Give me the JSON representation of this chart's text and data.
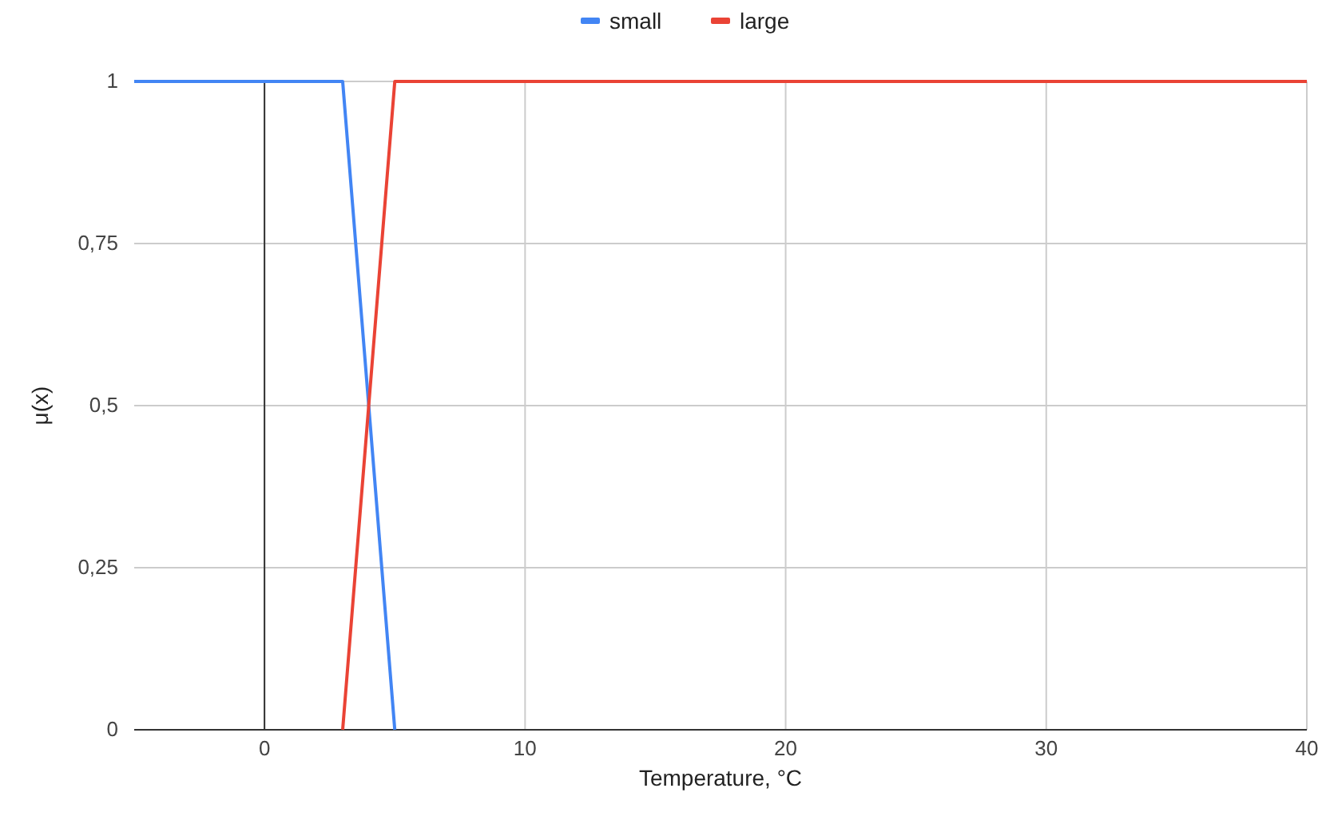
{
  "chart_data": {
    "type": "line",
    "xlabel": "Temperature, °C",
    "ylabel": "μ(x)",
    "series": [
      {
        "name": "small",
        "color": "#4285f4",
        "x": [
          -5,
          3,
          5
        ],
        "values": [
          1,
          1,
          0
        ]
      },
      {
        "name": "large",
        "color": "#ea4335",
        "x": [
          3,
          5,
          40
        ],
        "values": [
          0,
          1,
          1
        ]
      }
    ],
    "xlim": [
      -5,
      40
    ],
    "xticks": [
      0,
      10,
      20,
      30,
      40
    ],
    "ylim": [
      0,
      1
    ],
    "yticks": [
      {
        "value": 0,
        "label": "0"
      },
      {
        "value": 0.25,
        "label": "0,25"
      },
      {
        "value": 0.5,
        "label": "0,5"
      },
      {
        "value": 0.75,
        "label": "0,75"
      },
      {
        "value": 1,
        "label": "1"
      }
    ],
    "ref_lines": [
      {
        "axis": "x",
        "value": 0,
        "color": "#333333"
      }
    ],
    "grid": true,
    "legend": "top"
  }
}
